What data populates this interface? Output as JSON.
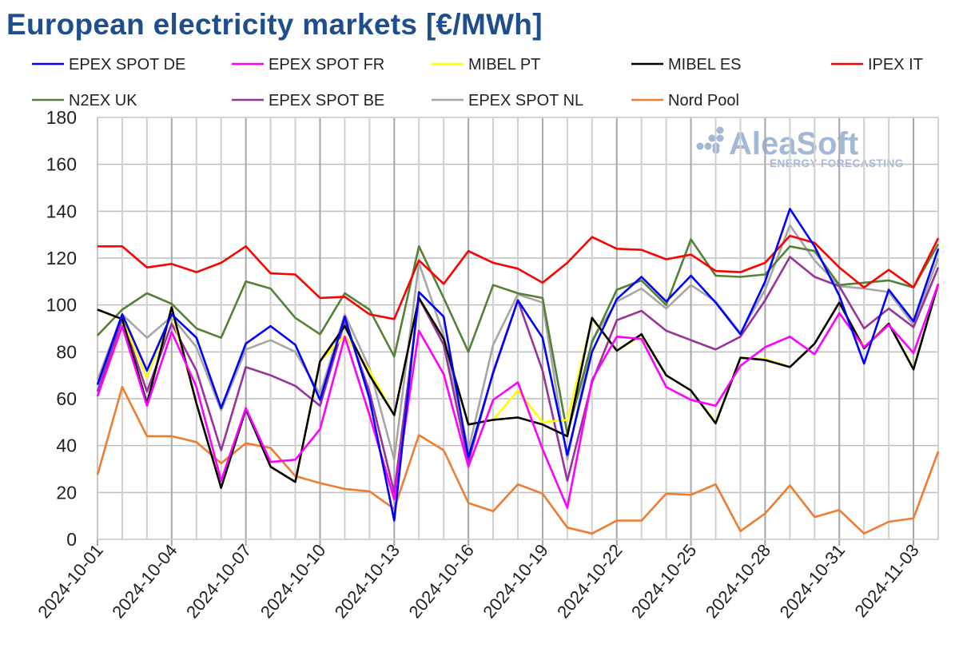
{
  "chart_data": {
    "type": "line",
    "title": "European electricity markets [€/MWh]",
    "xlabel": "",
    "ylabel": "",
    "ylim": [
      0,
      180
    ],
    "yticks": [
      0,
      20,
      40,
      60,
      80,
      100,
      120,
      140,
      160,
      180
    ],
    "grid": true,
    "legend_placement": "top",
    "watermark": "AleaSoft ENERGY FORECASTING",
    "x": [
      "2024-10-01",
      "2024-10-02",
      "2024-10-03",
      "2024-10-04",
      "2024-10-05",
      "2024-10-06",
      "2024-10-07",
      "2024-10-08",
      "2024-10-09",
      "2024-10-10",
      "2024-10-11",
      "2024-10-12",
      "2024-10-13",
      "2024-10-14",
      "2024-10-15",
      "2024-10-16",
      "2024-10-17",
      "2024-10-18",
      "2024-10-19",
      "2024-10-20",
      "2024-10-21",
      "2024-10-22",
      "2024-10-23",
      "2024-10-24",
      "2024-10-25",
      "2024-10-26",
      "2024-10-27",
      "2024-10-28",
      "2024-10-29",
      "2024-10-30",
      "2024-10-31",
      "2024-11-01",
      "2024-11-02",
      "2024-11-03",
      "2024-11-04"
    ],
    "xtick_labels": [
      "2024-10-01",
      "2024-10-04",
      "2024-10-07",
      "2024-10-10",
      "2024-10-13",
      "2024-10-16",
      "2024-10-19",
      "2024-10-22",
      "2024-10-25",
      "2024-10-28",
      "2024-10-31",
      "2024-11-03"
    ],
    "series": [
      {
        "name": "EPEX SPOT DE",
        "color": "#0000ff",
        "values": [
          66,
          96,
          72,
          96,
          86,
          56,
          83.5,
          91,
          83,
          59.5,
          95,
          60,
          8,
          105.5,
          95,
          35,
          71,
          102,
          86,
          36,
          80,
          102.5,
          112,
          101.5,
          112.5,
          101,
          87.5,
          110,
          141,
          125,
          104,
          75,
          106.5,
          93,
          124
        ]
      },
      {
        "name": "EPEX SPOT FR",
        "color": "#ff00ff",
        "values": [
          61,
          91,
          57,
          88.5,
          65,
          25,
          56,
          33,
          34,
          47,
          86.5,
          53,
          17,
          89,
          70.5,
          31,
          59.5,
          67,
          38.5,
          13.5,
          68,
          86.5,
          85.5,
          65,
          59.5,
          57,
          74,
          82,
          86.5,
          79,
          96.5,
          82,
          91.5,
          79.5,
          109
        ]
      },
      {
        "name": "MIBEL PT",
        "color": "#ffff00",
        "values": [
          98,
          94,
          69,
          97,
          58,
          22,
          56,
          31,
          24.5,
          76,
          87,
          72,
          53,
          103,
          85.5,
          49,
          51,
          63.5,
          50,
          51,
          94,
          80.5,
          87,
          70,
          63.5,
          50,
          77.5,
          77,
          73.5,
          83.5,
          101,
          82,
          92,
          73,
          109
        ]
      },
      {
        "name": "MIBEL ES",
        "color": "#000000",
        "values": [
          98,
          94,
          58,
          99,
          58,
          22,
          55.5,
          31,
          24.5,
          76,
          91,
          70,
          53,
          103,
          85.5,
          49,
          51,
          52,
          49,
          44,
          94.5,
          80.5,
          87.5,
          70,
          63.5,
          49.5,
          77.5,
          76.5,
          73.5,
          83.5,
          101,
          81.5,
          92,
          72.5,
          109
        ]
      },
      {
        "name": "IPEX IT",
        "color": "#ff0000",
        "values": [
          125,
          125,
          116,
          117.5,
          114,
          118,
          125,
          113.5,
          113,
          103,
          103.5,
          96,
          94,
          119,
          109,
          123,
          118,
          115.5,
          109.5,
          118,
          129,
          124,
          123.5,
          119.5,
          121.5,
          114.5,
          114,
          118,
          129.5,
          126.5,
          116,
          107.5,
          115,
          107.5,
          128.5
        ]
      },
      {
        "name": "N2EX UK",
        "color": "#538135",
        "values": [
          87,
          98,
          105,
          100.5,
          90,
          86,
          110,
          107,
          94.5,
          87.5,
          105,
          98,
          78,
          125,
          103,
          80,
          108.5,
          105,
          103,
          45,
          84,
          106.5,
          110.5,
          100,
          128,
          112.5,
          112,
          113,
          125,
          123,
          108.5,
          109.5,
          110.5,
          107.5,
          126
        ]
      },
      {
        "name": "EPEX SPOT BE",
        "color": "#993399",
        "values": [
          63,
          94,
          63,
          92,
          72,
          38,
          73.5,
          70,
          65.5,
          57,
          93,
          63,
          20,
          103,
          83,
          33,
          71.5,
          102,
          72,
          25,
          67,
          93.5,
          97.5,
          89,
          85,
          81,
          86.5,
          102,
          120.5,
          112,
          108,
          90,
          98.5,
          90.5,
          116
        ]
      },
      {
        "name": "EPEX SPOT NL",
        "color": "#a6a6a6",
        "values": [
          68,
          96,
          86,
          95,
          82,
          55,
          81,
          85,
          80,
          62,
          96,
          73,
          34,
          118,
          87,
          38,
          83,
          104.5,
          101,
          34,
          85,
          101.5,
          107,
          98.5,
          108.5,
          101.5,
          88,
          106.5,
          134,
          119,
          108,
          107,
          105.5,
          91.5,
          120
        ]
      },
      {
        "name": "Nord Pool",
        "color": "#ed7d31",
        "values": [
          27.5,
          65,
          44,
          44,
          41.5,
          32.5,
          41,
          39,
          27,
          24,
          21.5,
          20.5,
          13,
          44.5,
          38,
          15.5,
          12,
          23.5,
          19.5,
          5,
          2.5,
          8,
          8,
          19.5,
          19,
          23.5,
          3.5,
          11,
          23,
          9.5,
          12.5,
          2.5,
          7.5,
          9,
          37.5
        ]
      }
    ]
  }
}
